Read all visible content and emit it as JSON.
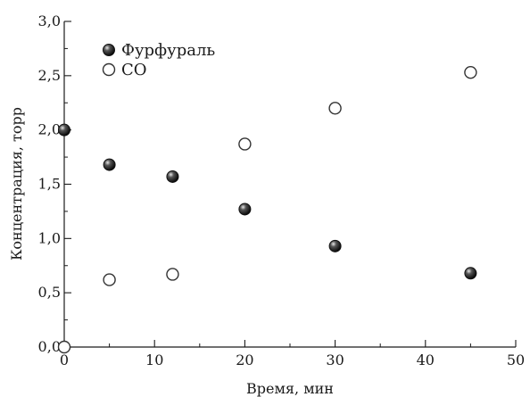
{
  "chart_data": {
    "type": "scatter",
    "xlabel": "Время, мин",
    "ylabel": "Концентрация, торр",
    "xlim": [
      0,
      50
    ],
    "ylim": [
      0,
      3.0
    ],
    "xticks": [
      "0",
      "10",
      "20",
      "30",
      "40",
      "50"
    ],
    "yticks": [
      "0,0",
      "0,5",
      "1,0",
      "1,5",
      "2,0",
      "2,5",
      "3,0"
    ],
    "grid": false,
    "legend_position": "top-left",
    "series": [
      {
        "name": "Фурфураль",
        "marker": "filled-circle",
        "color": "#111111",
        "x": [
          0,
          5,
          12,
          20,
          30,
          45
        ],
        "y": [
          2.0,
          1.68,
          1.57,
          1.27,
          0.93,
          0.68
        ]
      },
      {
        "name": "CO",
        "marker": "open-circle",
        "color": "#333333",
        "x": [
          0,
          5,
          12,
          20,
          30,
          45
        ],
        "y": [
          0.0,
          0.62,
          0.67,
          1.87,
          2.2,
          2.53
        ]
      }
    ]
  }
}
